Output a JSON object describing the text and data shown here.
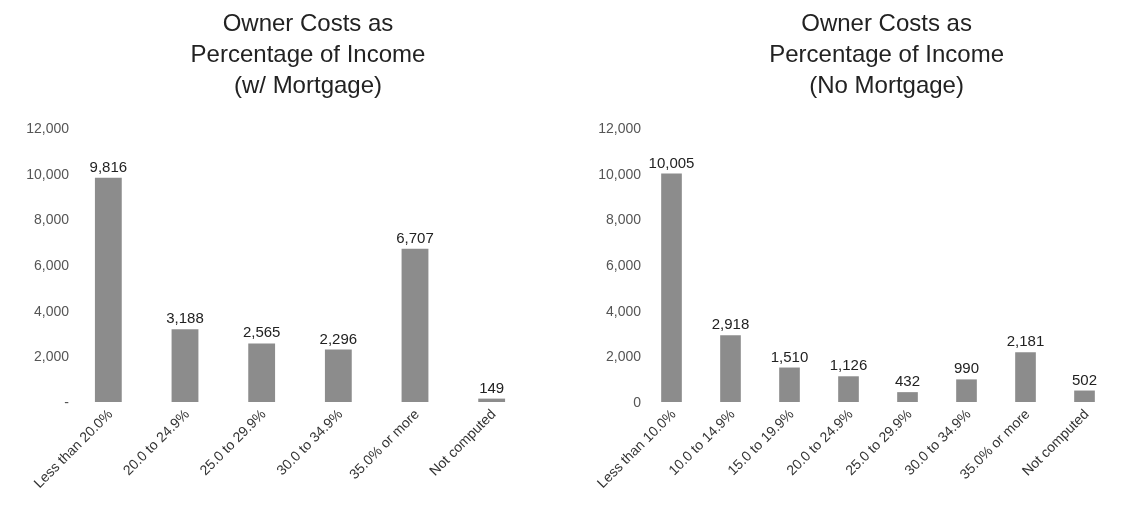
{
  "chart_data": [
    {
      "type": "bar",
      "title": "Owner Costs as\nPercentage of Income\n(w/ Mortgage)",
      "categories": [
        "Less than 20.0%",
        "20.0 to 24.9%",
        "25.0 to 29.9%",
        "30.0 to 34.9%",
        "35.0% or more",
        "Not computed"
      ],
      "values": [
        9816,
        3188,
        2565,
        2296,
        6707,
        149
      ],
      "color": "#8c8c8c",
      "ylim": [
        0,
        12000
      ],
      "yticks": [
        {
          "value": 0,
          "label": "-"
        },
        {
          "value": 2000,
          "label": "2,000"
        },
        {
          "value": 4000,
          "label": "4,000"
        },
        {
          "value": 6000,
          "label": "6,000"
        },
        {
          "value": 8000,
          "label": "8,000"
        },
        {
          "value": 10000,
          "label": "10,000"
        },
        {
          "value": 12000,
          "label": "12,000"
        }
      ],
      "value_labels": [
        "9,816",
        "3,188",
        "2,565",
        "2,296",
        "6,707",
        "149"
      ],
      "grid": false
    },
    {
      "type": "bar",
      "title": "Owner Costs as\nPercentage of Income\n(No Mortgage)",
      "categories": [
        "Less than 10.0%",
        "10.0 to 14.9%",
        "15.0 to 19.9%",
        "20.0 to 24.9%",
        "25.0 to 29.9%",
        "30.0 to 34.9%",
        "35.0% or more",
        "Not computed"
      ],
      "values": [
        10005,
        2918,
        1510,
        1126,
        432,
        990,
        2181,
        502
      ],
      "color": "#8c8c8c",
      "ylim": [
        0,
        12000
      ],
      "yticks": [
        0,
        {
          "value": 2000,
          "label": "2,000"
        },
        {
          "value": 4000,
          "label": "4,000"
        },
        {
          "value": 6000,
          "label": "6,000"
        },
        {
          "value": 8000,
          "label": "8,000"
        },
        {
          "value": 10000,
          "label": "10,000"
        },
        {
          "value": 12000,
          "label": "12,000"
        }
      ],
      "value_labels": [
        "10,005",
        "2,918",
        "1,510",
        "1,126",
        "432",
        "990",
        "2,181",
        "502"
      ],
      "grid": false
    }
  ]
}
